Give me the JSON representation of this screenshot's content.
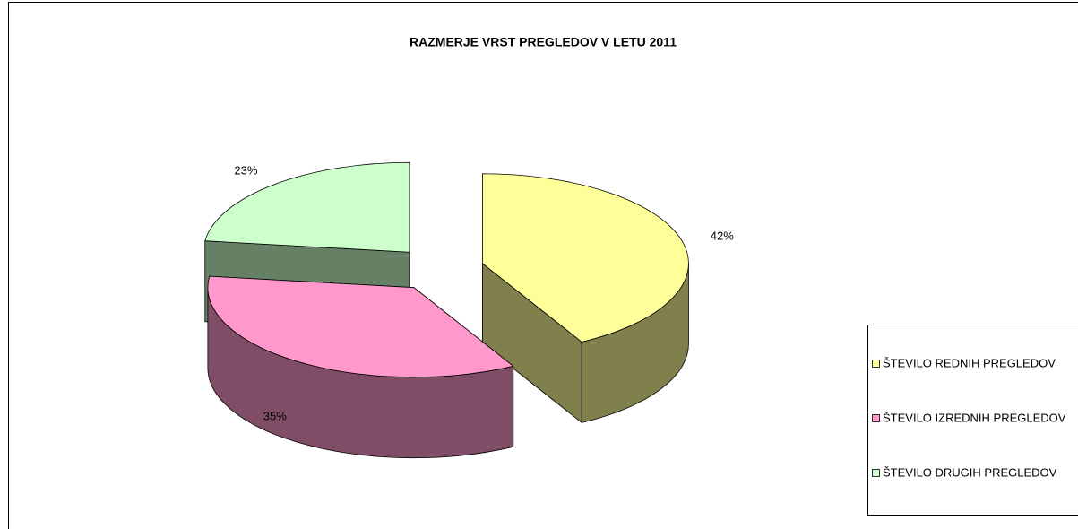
{
  "chart_data": {
    "type": "pie",
    "title": "RAZMERJE VRST PREGLEDOV V LETU 2011",
    "categories": [
      "ŠTEVILO REDNIH PREGLEDOV",
      "ŠTEVILO IZREDNIH PREGLEDOV",
      "ŠTEVILO DRUGIH PREGLEDOV"
    ],
    "values": [
      42,
      35,
      23
    ],
    "value_labels": [
      "42%",
      "35%",
      "23%"
    ],
    "colors": [
      "#FFFF99",
      "#FF99CC",
      "#CCFFCC"
    ]
  }
}
